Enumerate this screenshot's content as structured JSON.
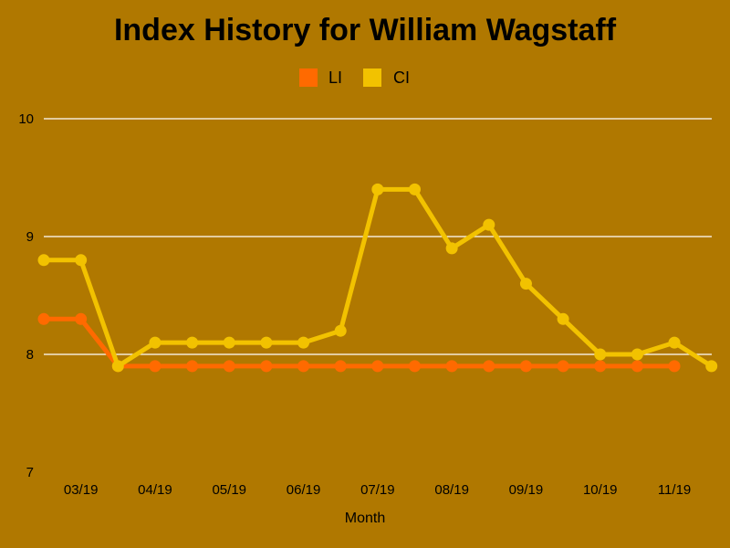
{
  "chart_data": {
    "type": "line",
    "title": "Index History for William Wagstaff",
    "xlabel": "Month",
    "ylabel": "",
    "ylim": [
      7,
      10
    ],
    "yticks": [
      7,
      8,
      9,
      10
    ],
    "x_tick_labels": [
      "03/19",
      "04/19",
      "05/19",
      "06/19",
      "07/19",
      "08/19",
      "09/19",
      "10/19",
      "11/19"
    ],
    "legend_position": "top-center",
    "grid": true,
    "series": [
      {
        "name": "LI",
        "color": "#ff6a00",
        "values": [
          8.3,
          8.3,
          7.9,
          7.9,
          7.9,
          7.9,
          7.9,
          7.9,
          7.9,
          7.9,
          7.9,
          7.9,
          7.9,
          7.9,
          7.9,
          7.9,
          7.9,
          7.9
        ]
      },
      {
        "name": "CI",
        "color": "#f2c200",
        "values": [
          8.8,
          8.8,
          7.9,
          8.1,
          8.1,
          8.1,
          8.1,
          8.1,
          8.2,
          9.4,
          9.4,
          8.9,
          9.1,
          8.6,
          8.3,
          8.0,
          8.0,
          8.1,
          7.9
        ]
      }
    ]
  }
}
